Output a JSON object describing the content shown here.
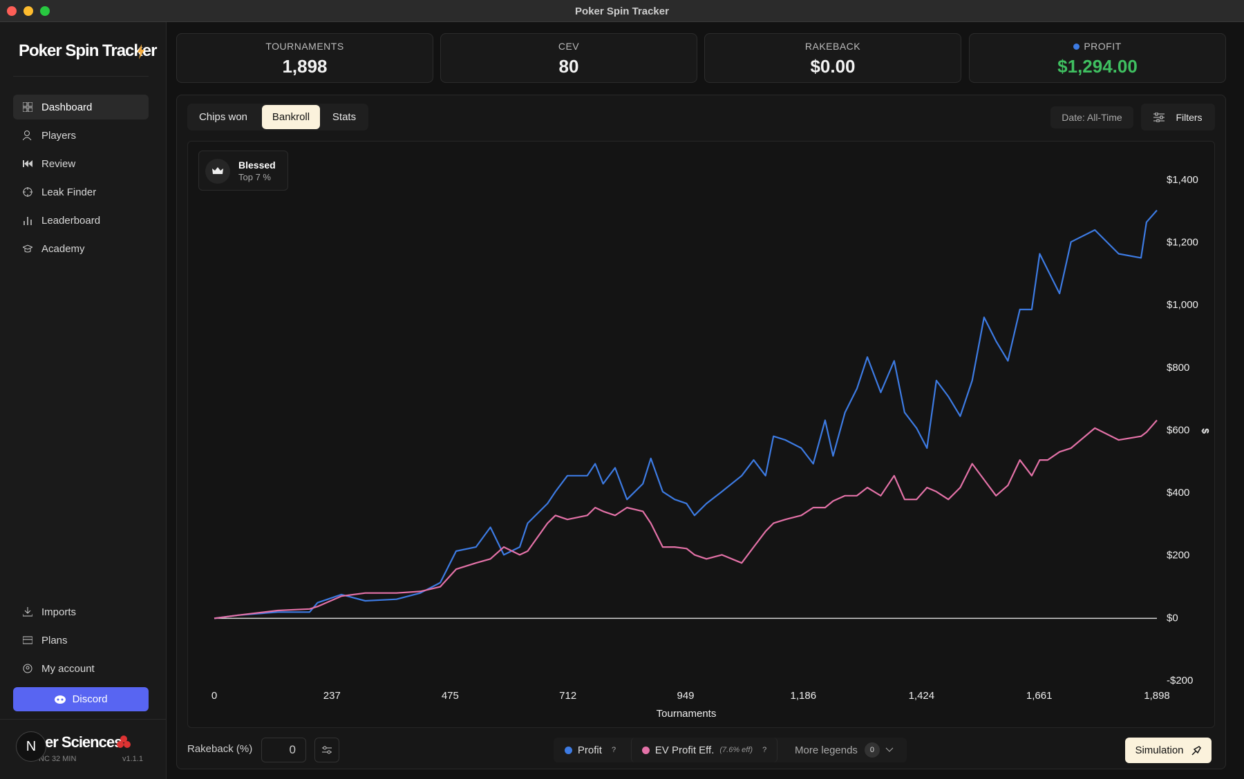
{
  "window_title": "Poker Spin Tracker",
  "sidebar": {
    "brand": "Poker Spin Tracker",
    "nav": [
      "Dashboard",
      "Players",
      "Review",
      "Leak Finder",
      "Leaderboard",
      "Academy"
    ],
    "bottom_nav": [
      "Imports",
      "Plans",
      "My account"
    ],
    "discord": "Discord",
    "avatar": "N",
    "footer_brand": "er Sciences",
    "footer_sub": "NC 32 MIN",
    "version": "v1.1.1"
  },
  "stats": [
    {
      "label": "TOURNAMENTS",
      "value": "1,898"
    },
    {
      "label": "CEV",
      "value": "80"
    },
    {
      "label": "RAKEBACK",
      "value": "$0.00"
    },
    {
      "label": "PROFIT",
      "value": "$1,294.00"
    }
  ],
  "tabs": [
    "Chips won",
    "Bankroll",
    "Stats"
  ],
  "date_filter": "Date: All-Time",
  "filters": "Filters",
  "badge": {
    "title": "Blessed",
    "subtitle": "Top 7 %"
  },
  "chart_data": {
    "type": "line",
    "x_label": "Tournaments",
    "y_label": "$",
    "zero_line": true,
    "x": [
      0,
      48,
      128,
      192,
      208,
      256,
      304,
      367,
      415,
      455,
      487,
      527,
      556,
      583,
      615,
      631,
      671,
      687,
      711,
      751,
      767,
      783,
      807,
      831,
      863,
      879,
      903,
      927,
      951,
      967,
      991,
      1022,
      1062,
      1086,
      1110,
      1126,
      1150,
      1182,
      1206,
      1230,
      1246,
      1270,
      1294,
      1315,
      1342,
      1369,
      1390,
      1414,
      1435,
      1454,
      1478,
      1502,
      1526,
      1550,
      1574,
      1598,
      1622,
      1646,
      1662,
      1678,
      1702,
      1725,
      1773,
      1821,
      1866,
      1877,
      1898
    ],
    "series": [
      {
        "name": "Profit",
        "color": "#3d7be3",
        "values": [
          0,
          10,
          20,
          20,
          50,
          76,
          56,
          61,
          81,
          114,
          215,
          228,
          291,
          203,
          228,
          304,
          367,
          405,
          456,
          456,
          494,
          430,
          481,
          380,
          430,
          511,
          405,
          380,
          367,
          329,
          367,
          405,
          456,
          506,
          456,
          582,
          570,
          544,
          494,
          633,
          519,
          658,
          734,
          835,
          722,
          823,
          658,
          608,
          544,
          760,
          709,
          646,
          760,
          962,
          886,
          823,
          987,
          987,
          1165,
          1114,
          1038,
          1203,
          1241,
          1165,
          1152,
          1266,
          1304
        ]
      },
      {
        "name": "EV Profit Eff.",
        "color": "#e472a8",
        "values": [
          0,
          10,
          25,
          30,
          38,
          71,
          81,
          81,
          86,
          101,
          157,
          177,
          190,
          228,
          203,
          215,
          304,
          329,
          316,
          329,
          354,
          342,
          329,
          354,
          342,
          304,
          228,
          228,
          223,
          203,
          190,
          203,
          177,
          228,
          278,
          304,
          316,
          329,
          354,
          354,
          375,
          392,
          392,
          418,
          392,
          456,
          380,
          380,
          418,
          405,
          380,
          418,
          494,
          443,
          392,
          425,
          506,
          456,
          506,
          506,
          532,
          544,
          608,
          570,
          582,
          595,
          633
        ]
      }
    ],
    "xlim": [
      0,
      1898
    ],
    "xticks": [
      0,
      237,
      475,
      712,
      949,
      {
        "value": 1186,
        "label": "1,186"
      },
      {
        "value": 1424,
        "label": "1,424"
      },
      {
        "value": 1661,
        "label": "1,661"
      },
      {
        "value": 1898,
        "label": "1,898"
      }
    ],
    "ylim": [
      -200,
      1400
    ],
    "yticks": [
      {
        "value": 1400,
        "label": "$1,400"
      },
      {
        "value": 1200,
        "label": "$1,200"
      },
      {
        "value": 1000,
        "label": "$1,000"
      },
      {
        "value": 800,
        "label": "$800"
      },
      {
        "value": 600,
        "label": "$600"
      },
      {
        "value": 400,
        "label": "$400"
      },
      {
        "value": 200,
        "label": "$200"
      },
      {
        "value": 0,
        "label": "$0"
      },
      {
        "value": -200,
        "label": "-$200"
      }
    ]
  },
  "bottom_bar": {
    "rakeback_label": "Rakeback (%)",
    "rakeback_value": "0",
    "legend_note": "(7.6% eff)",
    "help": "?",
    "more_legends": "More legends",
    "more_count": "0",
    "simulation": "Simulation"
  }
}
